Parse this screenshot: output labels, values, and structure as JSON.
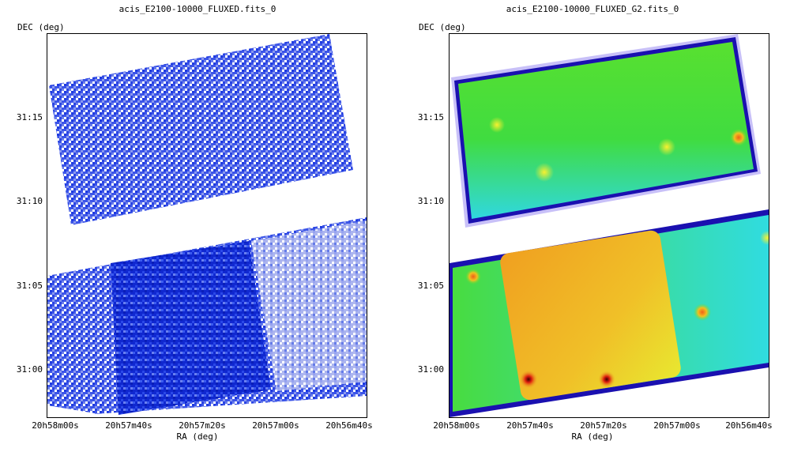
{
  "panels": [
    {
      "title": "acis_E2100-10000_FLUXED.fits_0",
      "ylabel": "DEC (deg)",
      "xlabel": "RA (deg)"
    },
    {
      "title": "acis_E2100-10000_FLUXED_G2.fits_0",
      "ylabel": "DEC (deg)",
      "xlabel": "RA (deg)"
    }
  ],
  "axes": {
    "x_ticks": [
      "20h58m00s",
      "20h57m40s",
      "20h57m20s",
      "20h57m00s",
      "20h56m40s"
    ],
    "y_ticks": [
      "31:15",
      "31:10",
      "31:05",
      "31:00"
    ]
  },
  "colors": {
    "raw_dark": "#1028d0",
    "raw_mid": "#3c55e8",
    "raw_light": "#8a98ee",
    "smooth_green": "#40dc30",
    "smooth_cyan": "#20d8f0",
    "smooth_orange": "#f0a818",
    "smooth_edge": "#1a10b0"
  }
}
